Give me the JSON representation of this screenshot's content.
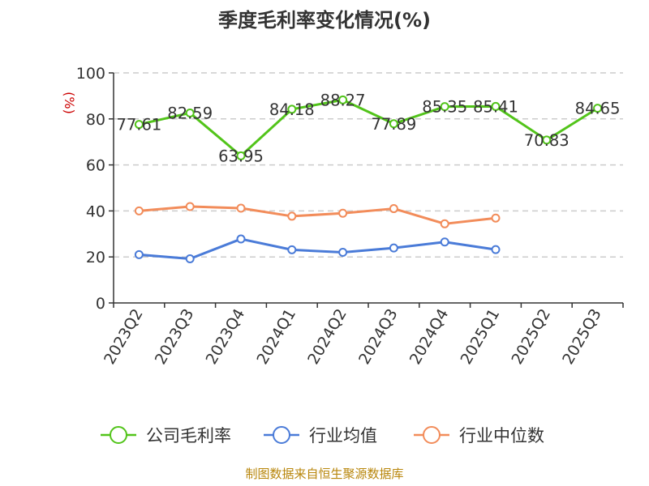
{
  "chart_data": {
    "type": "line",
    "title": "季度毛利率变化情况(%)",
    "ylabel": "(%)",
    "xlabel": "",
    "ylim": [
      0,
      100
    ],
    "yticks": [
      0,
      20,
      40,
      60,
      80,
      100
    ],
    "grid": true,
    "legend_position": "bottom",
    "categories": [
      "2023Q2",
      "2023Q3",
      "2023Q4",
      "2024Q1",
      "2024Q2",
      "2024Q3",
      "2024Q4",
      "2025Q1",
      "2025Q2",
      "2025Q3"
    ],
    "series": [
      {
        "name": "公司毛利率",
        "color": "#52c41a",
        "values": [
          77.61,
          82.59,
          63.95,
          84.18,
          88.27,
          77.89,
          85.35,
          85.41,
          70.83,
          84.65
        ],
        "labels": [
          "77.61",
          "82.59",
          "63.95",
          "84.18",
          "88.27",
          "77.89",
          "85.35",
          "85.41",
          "70.83",
          "84.65"
        ]
      },
      {
        "name": "行业均值",
        "color": "#4a7bd8",
        "values": [
          21.0,
          19.2,
          27.8,
          23.1,
          22.0,
          23.9,
          26.5,
          23.2,
          null,
          null
        ]
      },
      {
        "name": "行业中位数",
        "color": "#f28c5a",
        "values": [
          40.0,
          41.9,
          41.2,
          37.7,
          39.0,
          41.0,
          34.4,
          36.9,
          null,
          null
        ]
      }
    ]
  },
  "source_note": "制图数据来自恒生聚源数据库"
}
